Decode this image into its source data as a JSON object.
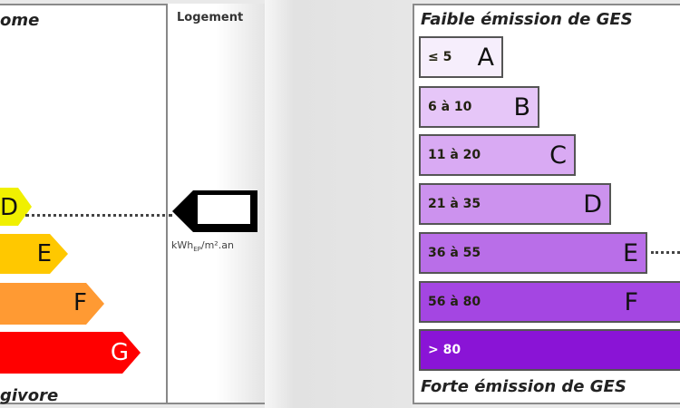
{
  "energy": {
    "top_label": "ome",
    "bottom_label": "givore",
    "column_header": "Logement",
    "unit": "kWhEP/m².an",
    "unit_main": "kWh",
    "unit_sub": "EP",
    "unit_rest": "/m².an",
    "classes": [
      {
        "letter": "D",
        "color": "#f0f000"
      },
      {
        "letter": "E",
        "color": "#ffc800"
      },
      {
        "letter": "F",
        "color": "#ff9a33"
      },
      {
        "letter": "G",
        "color": "#ff0000"
      }
    ],
    "indicated_class": "D"
  },
  "ges": {
    "top_label": "Faible émission de GES",
    "bottom_label": "Forte émission de GES",
    "classes": [
      {
        "range": "≤ 5",
        "letter": "A",
        "color": "#f6eefc"
      },
      {
        "range": "6 à 10",
        "letter": "B",
        "color": "#e6c6f8"
      },
      {
        "range": "11 à 20",
        "letter": "C",
        "color": "#d9aaf3"
      },
      {
        "range": "21 à 35",
        "letter": "D",
        "color": "#cc92ee"
      },
      {
        "range": "36 à 55",
        "letter": "E",
        "color": "#b96ee8"
      },
      {
        "range": "56 à 80",
        "letter": "F",
        "color": "#a446e2"
      },
      {
        "range": "> 80",
        "letter": "G",
        "color": "#8a14d6"
      }
    ],
    "indicated_class": "E"
  }
}
